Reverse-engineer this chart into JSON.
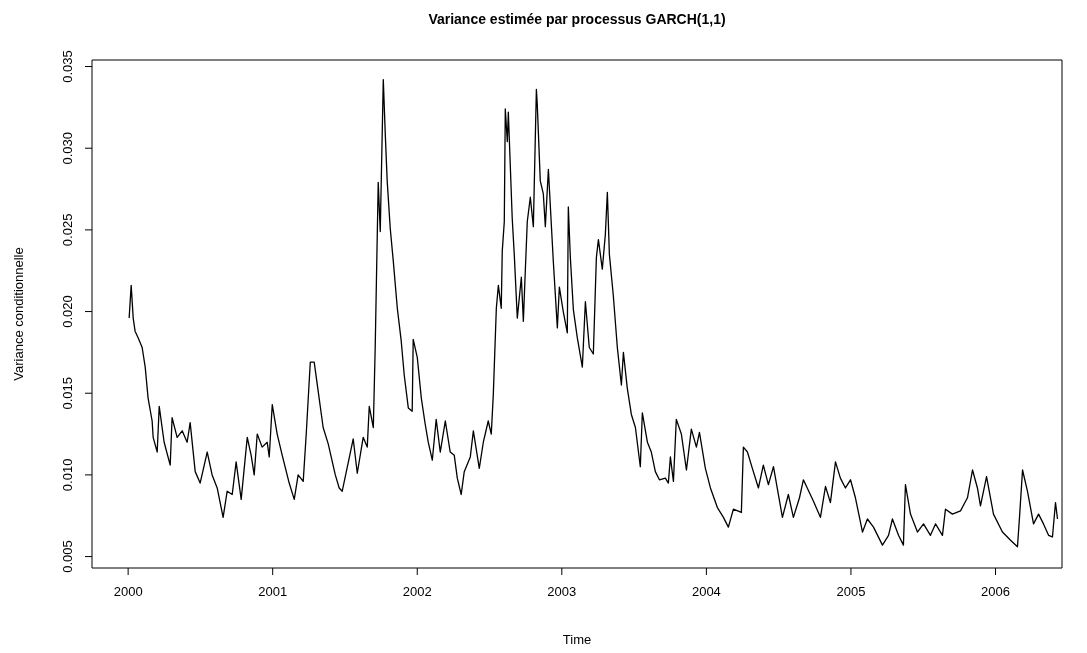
{
  "chart_data": {
    "type": "line",
    "title": "Variance estimée par processus GARCH(1,1)",
    "xlabel": "Time",
    "ylabel": "Variance conditionnelle",
    "x": [
      2000.007,
      2000.021,
      2000.035,
      2000.048,
      2000.069,
      2000.097,
      2000.118,
      2000.138,
      2000.166,
      2000.173,
      2000.201,
      2000.215,
      2000.249,
      2000.291,
      2000.304,
      2000.339,
      2000.374,
      2000.408,
      2000.429,
      2000.464,
      2000.498,
      2000.547,
      2000.581,
      2000.616,
      2000.657,
      2000.685,
      2000.72,
      2000.747,
      2000.782,
      2000.824,
      2000.851,
      2000.872,
      2000.893,
      2000.927,
      2000.962,
      2000.976,
      2000.997,
      2001.031,
      2001.066,
      2001.114,
      2001.149,
      2001.176,
      2001.211,
      2001.232,
      2001.26,
      2001.287,
      2001.315,
      2001.349,
      2001.384,
      2001.433,
      2001.46,
      2001.481,
      2001.557,
      2001.585,
      2001.626,
      2001.654,
      2001.668,
      2001.696,
      2001.709,
      2001.73,
      2001.744,
      2001.765,
      2001.779,
      2001.792,
      2001.813,
      2001.834,
      2001.862,
      2001.889,
      2001.91,
      2001.938,
      2001.965,
      2001.972,
      2002.0,
      2002.028,
      2002.055,
      2002.076,
      2002.104,
      2002.131,
      2002.159,
      2002.194,
      2002.228,
      2002.256,
      2002.277,
      2002.304,
      2002.325,
      2002.367,
      2002.388,
      2002.429,
      2002.457,
      2002.491,
      2002.512,
      2002.526,
      2002.547,
      2002.561,
      2002.581,
      2002.588,
      2002.602,
      2002.609,
      2002.623,
      2002.63,
      2002.657,
      2002.671,
      2002.692,
      2002.72,
      2002.734,
      2002.747,
      2002.761,
      2002.782,
      2002.803,
      2002.81,
      2002.824,
      2002.83,
      2002.851,
      2002.872,
      2002.886,
      2002.907,
      2002.941,
      2002.969,
      2002.983,
      2003.01,
      2003.038,
      2003.045,
      2003.059,
      2003.08,
      2003.107,
      2003.142,
      2003.163,
      2003.19,
      2003.218,
      2003.239,
      2003.253,
      2003.28,
      2003.301,
      2003.315,
      2003.329,
      2003.356,
      2003.384,
      2003.412,
      2003.426,
      2003.453,
      2003.481,
      2003.509,
      2003.543,
      2003.557,
      2003.592,
      2003.619,
      2003.647,
      2003.675,
      2003.716,
      2003.737,
      2003.751,
      2003.772,
      2003.792,
      2003.827,
      2003.862,
      2003.896,
      2003.931,
      2003.952,
      2003.993,
      2004.028,
      2004.076,
      2004.118,
      2004.152,
      2004.187,
      2004.242,
      2004.256,
      2004.284,
      2004.318,
      2004.36,
      2004.394,
      2004.429,
      2004.464,
      2004.526,
      2004.567,
      2004.602,
      2004.644,
      2004.671,
      2004.74,
      2004.789,
      2004.824,
      2004.858,
      2004.893,
      2004.927,
      2004.962,
      2004.997,
      2005.031,
      2005.08,
      2005.114,
      2005.156,
      2005.218,
      2005.26,
      2005.287,
      2005.329,
      2005.363,
      2005.377,
      2005.412,
      2005.46,
      2005.502,
      2005.55,
      2005.585,
      2005.633,
      2005.654,
      2005.702,
      2005.758,
      2005.806,
      2005.841,
      2005.875,
      2005.896,
      2005.938,
      2005.986,
      2006.048,
      2006.104,
      2006.152,
      2006.166,
      2006.187,
      2006.221,
      2006.263,
      2006.298,
      2006.332,
      2006.367,
      2006.394,
      2006.415,
      2006.429
    ],
    "series": [
      {
        "color": "#000000",
        "values": [
          0.0196,
          0.0216,
          0.0196,
          0.0188,
          0.0184,
          0.0178,
          0.0166,
          0.0147,
          0.0133,
          0.0123,
          0.0114,
          0.0142,
          0.012,
          0.0106,
          0.0135,
          0.0123,
          0.0127,
          0.012,
          0.0132,
          0.0102,
          0.0095,
          0.0114,
          0.01,
          0.0092,
          0.0074,
          0.009,
          0.0088,
          0.0108,
          0.0085,
          0.0123,
          0.0112,
          0.01,
          0.0125,
          0.0117,
          0.012,
          0.0111,
          0.0143,
          0.0125,
          0.0112,
          0.0095,
          0.0085,
          0.01,
          0.0096,
          0.0125,
          0.0169,
          0.0169,
          0.0151,
          0.0129,
          0.0119,
          0.01,
          0.0092,
          0.009,
          0.0122,
          0.0101,
          0.0123,
          0.0117,
          0.0142,
          0.0129,
          0.0178,
          0.0279,
          0.0249,
          0.0342,
          0.0308,
          0.028,
          0.0251,
          0.0231,
          0.0202,
          0.0182,
          0.0161,
          0.0141,
          0.0139,
          0.0183,
          0.0172,
          0.0147,
          0.0131,
          0.012,
          0.0109,
          0.0134,
          0.0114,
          0.0133,
          0.0114,
          0.0112,
          0.0098,
          0.0088,
          0.0102,
          0.0111,
          0.0127,
          0.0104,
          0.012,
          0.0133,
          0.0125,
          0.0149,
          0.0202,
          0.0216,
          0.0202,
          0.0237,
          0.0255,
          0.0324,
          0.0304,
          0.0322,
          0.0257,
          0.0235,
          0.0196,
          0.0221,
          0.0194,
          0.0224,
          0.0255,
          0.027,
          0.0252,
          0.028,
          0.0336,
          0.0327,
          0.028,
          0.0272,
          0.0252,
          0.0287,
          0.0231,
          0.019,
          0.0215,
          0.02,
          0.0187,
          0.0264,
          0.0233,
          0.0201,
          0.0184,
          0.0166,
          0.0206,
          0.0178,
          0.0174,
          0.0233,
          0.0244,
          0.0226,
          0.0247,
          0.0273,
          0.0235,
          0.021,
          0.0178,
          0.0155,
          0.0175,
          0.0153,
          0.0137,
          0.0129,
          0.0105,
          0.0138,
          0.012,
          0.0114,
          0.0102,
          0.0097,
          0.0098,
          0.0095,
          0.0111,
          0.0096,
          0.0134,
          0.0125,
          0.0103,
          0.0128,
          0.0117,
          0.0126,
          0.0104,
          0.0092,
          0.008,
          0.0074,
          0.0068,
          0.0079,
          0.0077,
          0.0117,
          0.0114,
          0.0104,
          0.0092,
          0.0106,
          0.0094,
          0.0105,
          0.0074,
          0.0088,
          0.0074,
          0.0086,
          0.0097,
          0.0084,
          0.0074,
          0.0093,
          0.0083,
          0.0108,
          0.0098,
          0.0092,
          0.0097,
          0.0086,
          0.0065,
          0.0073,
          0.0068,
          0.0057,
          0.0063,
          0.0073,
          0.0063,
          0.0057,
          0.0094,
          0.0076,
          0.0065,
          0.007,
          0.0063,
          0.007,
          0.0063,
          0.0079,
          0.0076,
          0.0078,
          0.0086,
          0.0103,
          0.0092,
          0.0081,
          0.0099,
          0.0076,
          0.0065,
          0.006,
          0.0056,
          0.0074,
          0.0103,
          0.009,
          0.007,
          0.0076,
          0.007,
          0.0063,
          0.0062,
          0.0083,
          0.0073
        ]
      }
    ],
    "xlim": [
      1999.75,
      2006.46
    ],
    "ylim": [
      0.0043,
      0.0354
    ],
    "xticks": [
      2000,
      2001,
      2002,
      2003,
      2004,
      2005,
      2006
    ],
    "yticks": [
      0.005,
      {
        "value": 0.01,
        "label": "0.010"
      },
      0.015,
      {
        "value": 0.02,
        "label": "0.020"
      },
      0.025,
      {
        "value": 0.03,
        "label": "0.030"
      },
      0.035
    ]
  }
}
